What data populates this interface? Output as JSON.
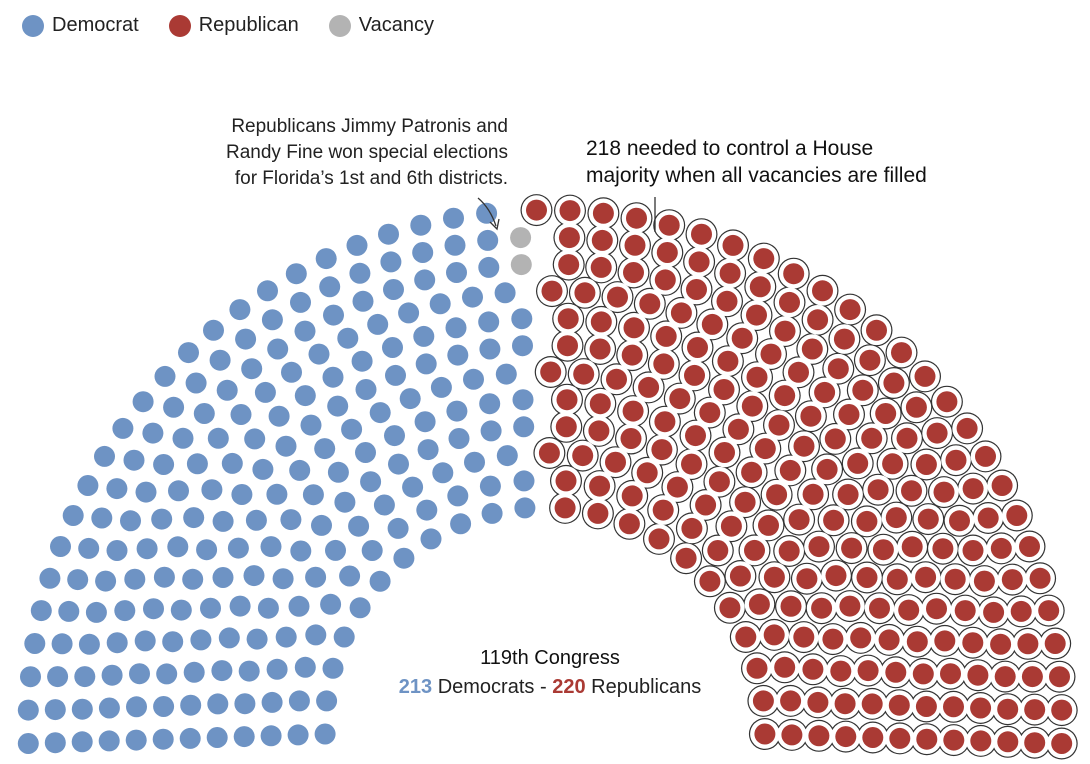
{
  "legend": [
    {
      "label": "Democrat",
      "color": "#6e93c4"
    },
    {
      "label": "Republican",
      "color": "#aa3a34"
    },
    {
      "label": "Vacancy",
      "color": "#b3b3b3"
    }
  ],
  "annotations": {
    "left_note": [
      "Republicans Jimmy Patronis and",
      "Randy Fine won special elections",
      "for Florida’s 1st and 6th districts."
    ],
    "right_note": [
      "218 needed to control a House",
      "majority when all vacancies are filled"
    ]
  },
  "summary": {
    "title": "119th Congress",
    "dem_count": "213",
    "dem_label": "Democrats",
    "separator": "-",
    "rep_count": "220",
    "rep_label": "Republicans"
  },
  "chart_data": {
    "type": "parliament",
    "total_seats": 435,
    "majority_threshold": 218,
    "series": [
      {
        "name": "Democrat",
        "value": 213,
        "color": "#6e93c4"
      },
      {
        "name": "Vacancy",
        "value": 2,
        "color": "#b3b3b3"
      },
      {
        "name": "Republican",
        "value": 220,
        "color": "#aa3a34"
      }
    ],
    "highlighted_seats": {
      "party": "Republican",
      "count": 2,
      "note": "special election wins (FL-1, FL-6)"
    }
  }
}
